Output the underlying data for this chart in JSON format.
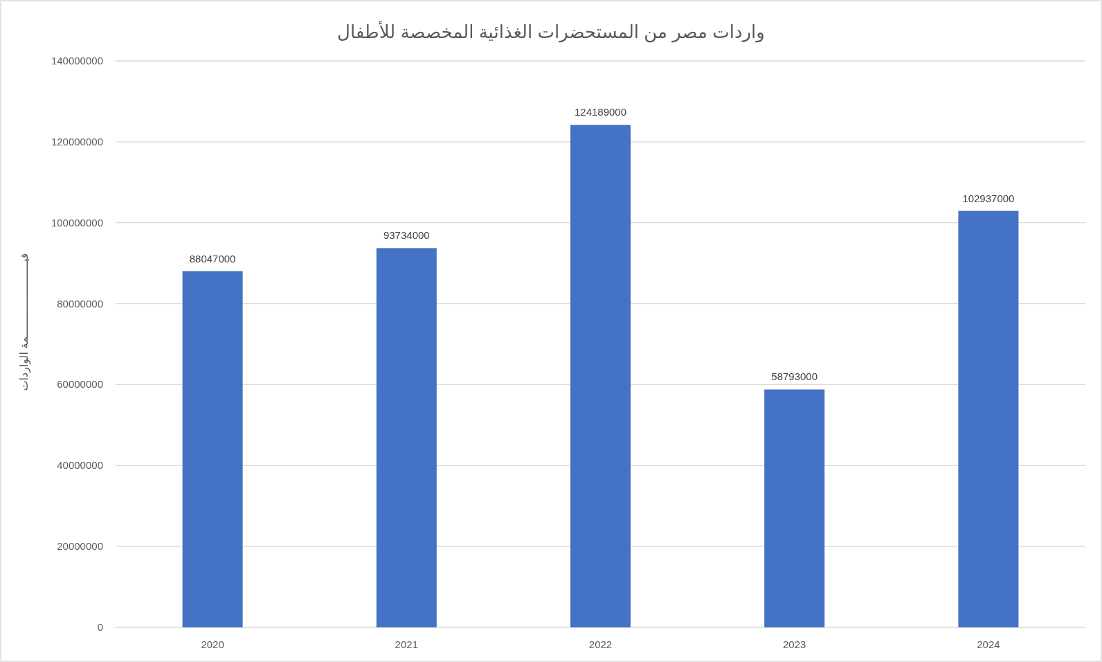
{
  "chart_data": {
    "type": "bar",
    "title": "واردات مصر من المستحضرات الغذائية المخصصة للأطفال",
    "ylabel": "قيـــــــــــــــــــــــمة الواردات",
    "categories": [
      "2020",
      "2021",
      "2022",
      "2023",
      "2024"
    ],
    "values": [
      88047000,
      93734000,
      124189000,
      58793000,
      102937000
    ],
    "color": "#4472c4",
    "ylim": [
      0,
      140000000
    ],
    "yticks": [
      0,
      20000000,
      40000000,
      60000000,
      80000000,
      100000000,
      120000000,
      140000000
    ],
    "grid": "y",
    "data_labels": true
  }
}
